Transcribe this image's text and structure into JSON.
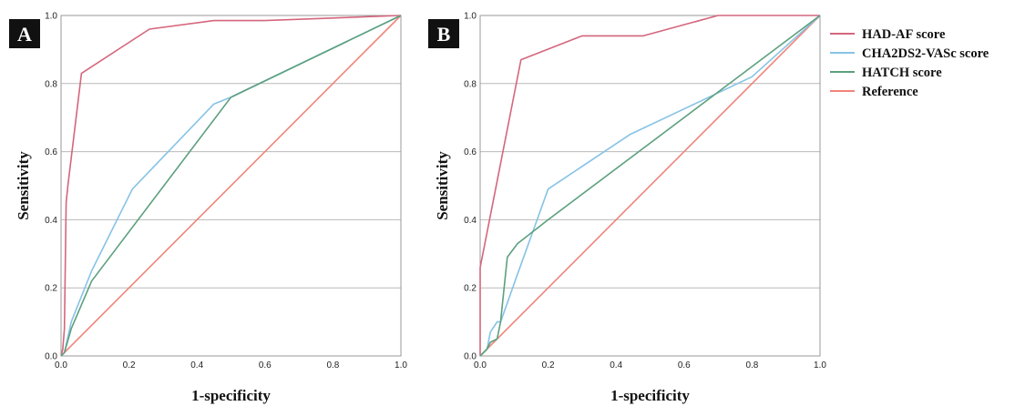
{
  "colors": {
    "HAD-AF score": "#d4667d",
    "CHA2DS2-VASc score": "#86c3e6",
    "HATCH score": "#5da07e",
    "Reference": "#f0847a",
    "panel_label_bg": "#111111"
  },
  "legend": {
    "placement": "right",
    "items": [
      {
        "label": "HAD-AF score",
        "color": "#d4667d"
      },
      {
        "label": "CHA2DS2-VASc score",
        "color": "#86c3e6"
      },
      {
        "label": "HATCH score",
        "color": "#5da07e"
      },
      {
        "label": "Reference",
        "color": "#f0847a"
      }
    ]
  },
  "chart_data": [
    {
      "type": "line",
      "panel_label": "A",
      "title": "",
      "xlabel": "1-specificity",
      "ylabel": "Sensitivity",
      "xlim": [
        0,
        1
      ],
      "ylim": [
        0,
        1
      ],
      "xticks": [
        "0.0",
        "0.2",
        "0.4",
        "0.6",
        "0.8",
        "1.0"
      ],
      "yticks": [
        "0.0",
        "0.2",
        "0.4",
        "0.6",
        "0.8",
        "1.0"
      ],
      "grid": "horizontal",
      "series": [
        {
          "name": "HAD-AF score",
          "color": "#d4667d",
          "x": [
            0,
            0.005,
            0.01,
            0.015,
            0.02,
            0.06,
            0.26,
            0.45,
            0.6,
            1.0
          ],
          "y": [
            0,
            0.02,
            0.08,
            0.45,
            0.5,
            0.83,
            0.96,
            0.985,
            0.985,
            1.0
          ]
        },
        {
          "name": "CHA2DS2-VASc score",
          "color": "#86c3e6",
          "x": [
            0,
            0.01,
            0.03,
            0.09,
            0.21,
            0.45,
            0.5,
            1.0
          ],
          "y": [
            0,
            0.01,
            0.1,
            0.25,
            0.49,
            0.74,
            0.76,
            1.0
          ]
        },
        {
          "name": "HATCH score",
          "color": "#5da07e",
          "x": [
            0,
            0.01,
            0.03,
            0.09,
            0.5,
            1.0
          ],
          "y": [
            0,
            0.01,
            0.08,
            0.22,
            0.76,
            1.0
          ]
        },
        {
          "name": "Reference",
          "color": "#f0847a",
          "x": [
            0,
            1
          ],
          "y": [
            0,
            1
          ]
        }
      ]
    },
    {
      "type": "line",
      "panel_label": "B",
      "title": "",
      "xlabel": "1-specificity",
      "ylabel": "Sensitivity",
      "xlim": [
        0,
        1
      ],
      "ylim": [
        0,
        1
      ],
      "xticks": [
        "0.0",
        "0.2",
        "0.4",
        "0.6",
        "0.8",
        "1.0"
      ],
      "yticks": [
        "0.0",
        "0.2",
        "0.4",
        "0.6",
        "0.8",
        "1.0"
      ],
      "grid": "horizontal",
      "series": [
        {
          "name": "HAD-AF score",
          "color": "#d4667d",
          "x": [
            0,
            0,
            0.12,
            0.3,
            0.48,
            0.7,
            1.0
          ],
          "y": [
            0,
            0.26,
            0.87,
            0.94,
            0.94,
            1.0,
            1.0
          ]
        },
        {
          "name": "CHA2DS2-VASc score",
          "color": "#86c3e6",
          "x": [
            0,
            0.02,
            0.03,
            0.05,
            0.06,
            0.11,
            0.2,
            0.44,
            0.8,
            1.0
          ],
          "y": [
            0,
            0.02,
            0.07,
            0.1,
            0.1,
            0.24,
            0.49,
            0.65,
            0.82,
            1.0
          ]
        },
        {
          "name": "HATCH score",
          "color": "#5da07e",
          "x": [
            0,
            0.02,
            0.03,
            0.05,
            0.06,
            0.08,
            0.11,
            0.2,
            1.0
          ],
          "y": [
            0,
            0.02,
            0.04,
            0.05,
            0.1,
            0.29,
            0.33,
            0.4,
            1.0
          ]
        },
        {
          "name": "Reference",
          "color": "#f0847a",
          "x": [
            0,
            1
          ],
          "y": [
            0,
            1
          ]
        }
      ]
    }
  ]
}
